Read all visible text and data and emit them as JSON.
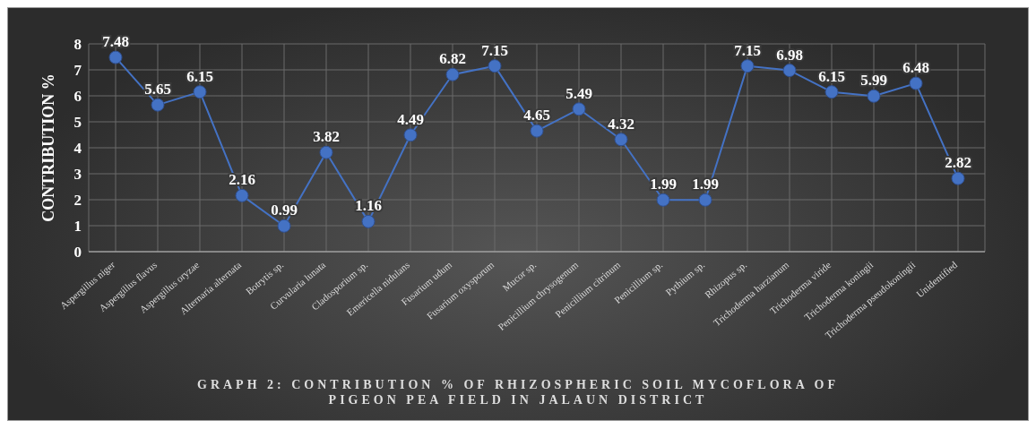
{
  "chart_data": {
    "type": "line",
    "title": "GRAPH 2: CONTRIBUTION % OF RHIZOSPHERIC SOIL MYCOFLORA OF PIGEON PEA FIELD IN JALAUN DISTRICT",
    "ylabel": "CONTRIBUTION %",
    "categories": [
      "Aspergillus niger",
      "Aspergillus flavus",
      "Aspergillus oryzae",
      "Alternaria alternata",
      "Botrytis sp.",
      "Curvularia lunata",
      "Cladosporium sp.",
      "Emericella nidulans",
      "Fusarium udum",
      "Fusarium oxysporum",
      "Mucor sp.",
      "Penicillium chrysogenum",
      "Penicillium citrinum",
      "Penicillium sp.",
      "Pythium sp.",
      "Rhizopus sp.",
      "Trichoderma harzianum",
      "Trichoderma viride",
      "Trichoderma koningii",
      "Trichoderma pseudokoningii",
      "Unidentified"
    ],
    "series": [
      {
        "color": "#4472c4",
        "values": [
          7.48,
          5.65,
          6.15,
          2.16,
          0.99,
          3.82,
          1.16,
          4.49,
          6.82,
          7.15,
          4.65,
          5.49,
          4.32,
          1.99,
          1.99,
          7.15,
          6.98,
          6.15,
          5.99,
          6.48,
          2.82
        ]
      }
    ],
    "ylim": [
      0,
      8
    ],
    "yticks": [
      0,
      1,
      2,
      3,
      4,
      5,
      6,
      7,
      8
    ],
    "grid": true,
    "legend": false,
    "marker": "circle",
    "line_style": "solid",
    "data_labels": true
  }
}
